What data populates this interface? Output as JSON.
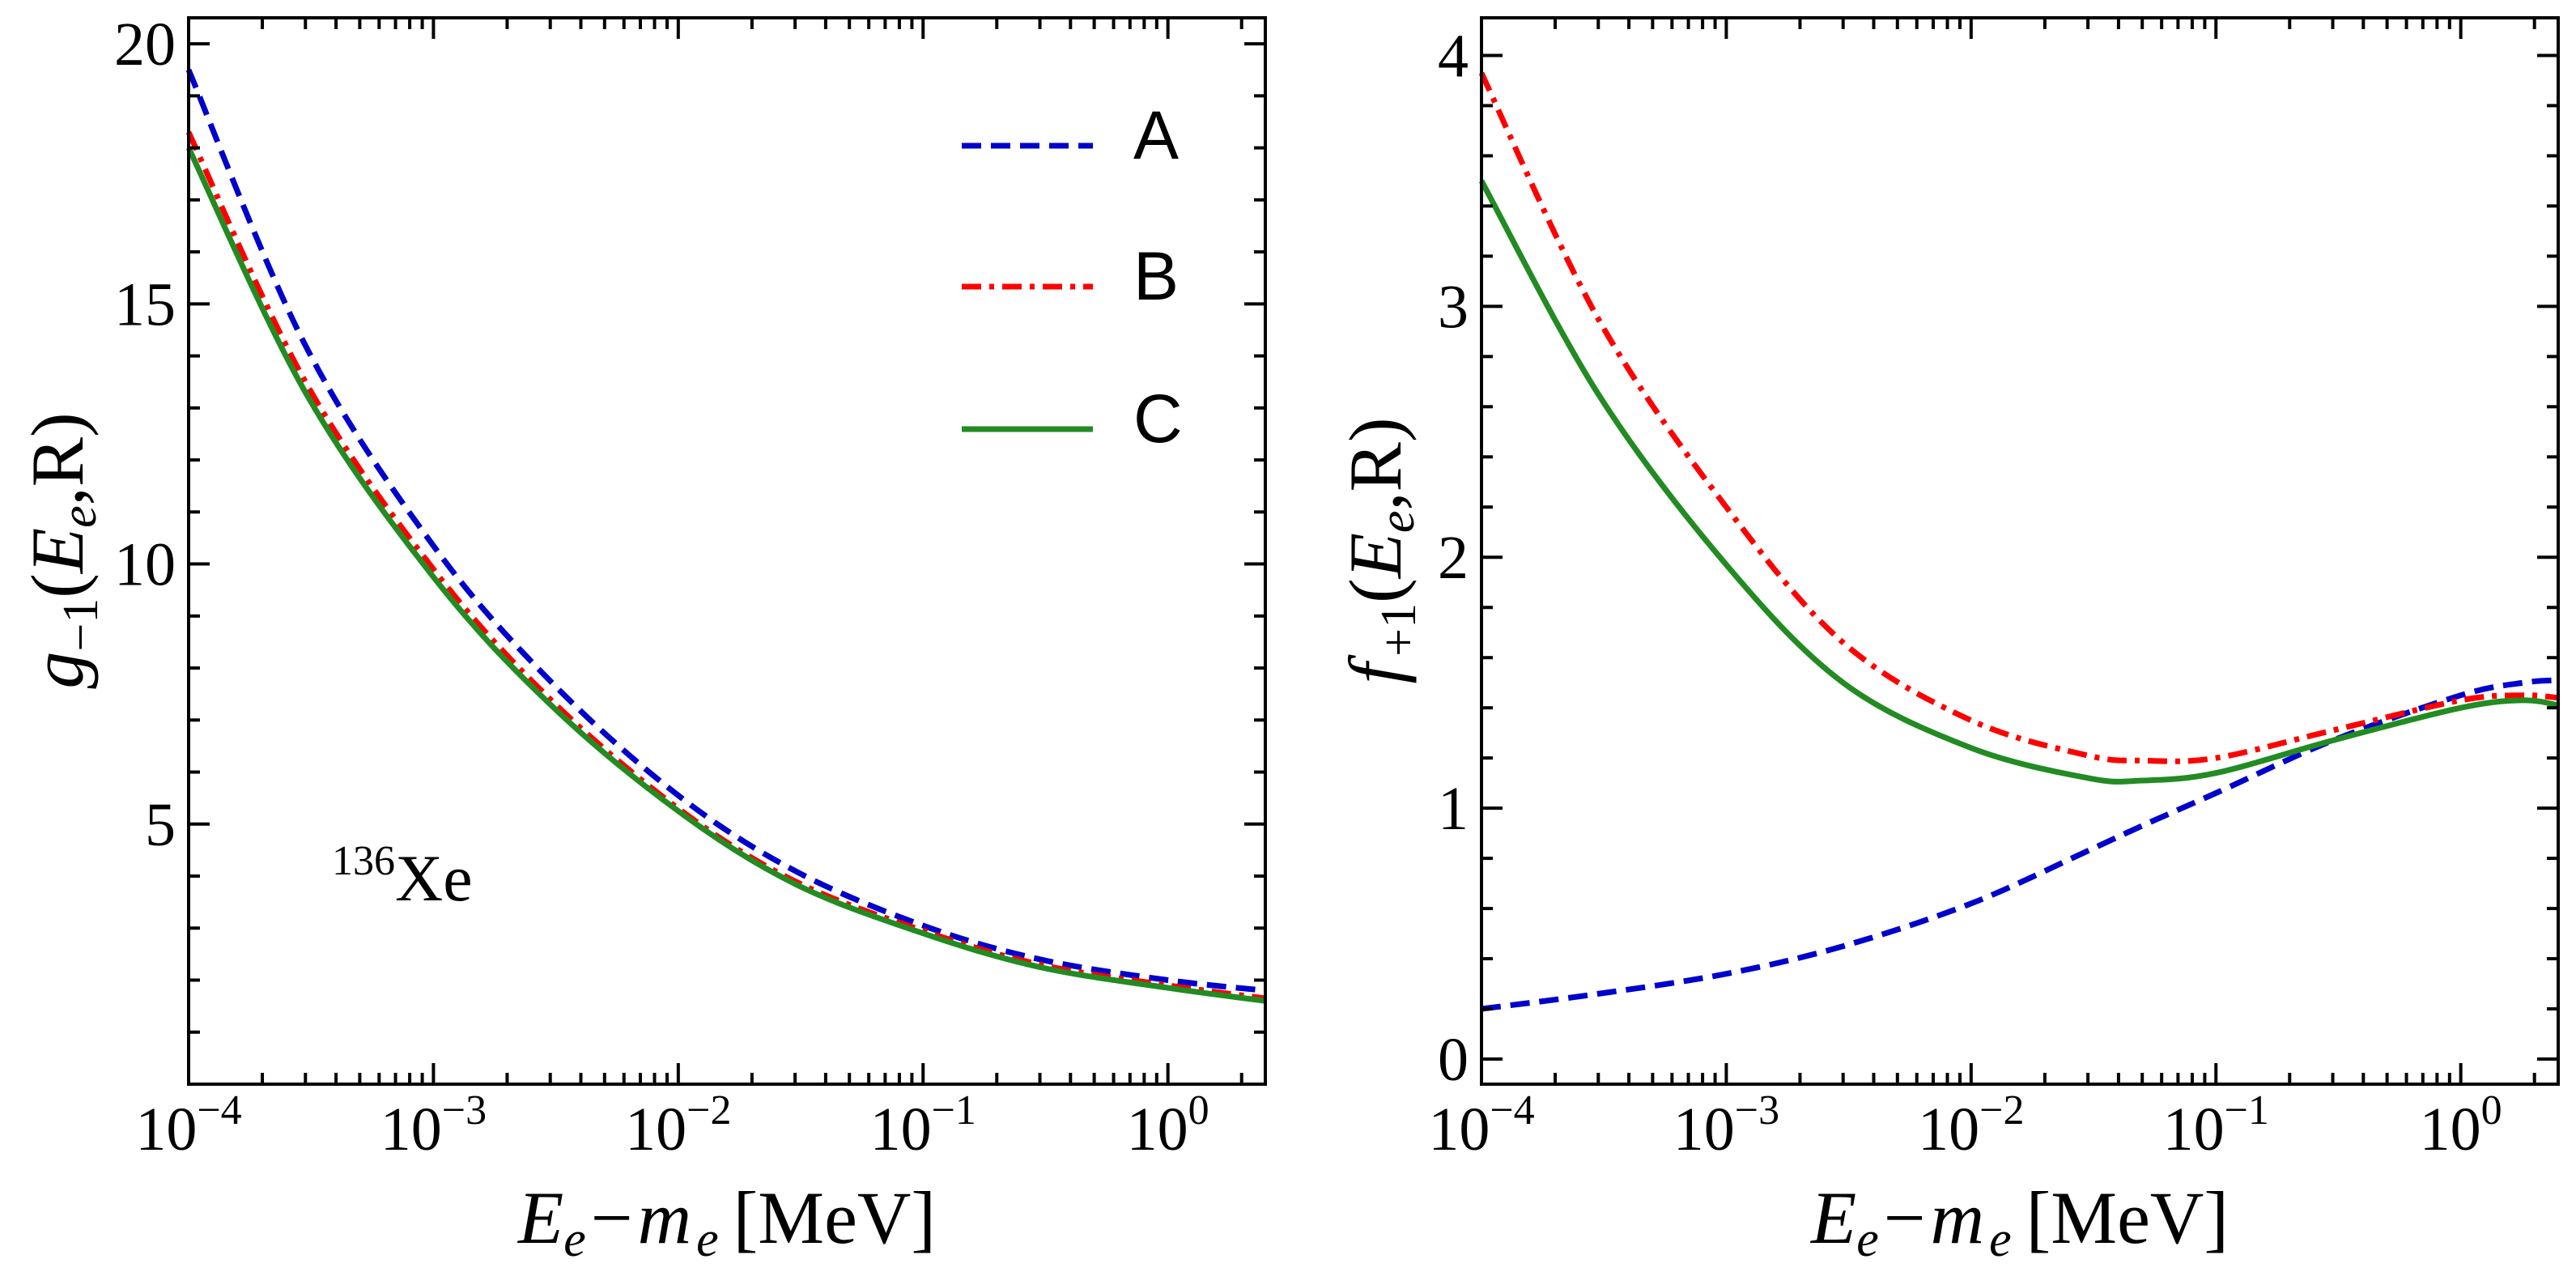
{
  "chart_data": [
    {
      "type": "line",
      "id": "left",
      "x_scale": "log",
      "xlim": [
        0.0001,
        2.5
      ],
      "ylim": [
        0,
        20.5
      ],
      "xlabel": "E_e − m_e [MeV]",
      "xlabel_main": "E",
      "xlabel_sub1": "e",
      "xlabel_minus": "−",
      "xlabel_m": "m",
      "xlabel_sub2": "e",
      "xlabel_unit": "[MeV]",
      "ylabel": "g_{-1}(E_e,R)",
      "ylabel_main": "g",
      "ylabel_sub": "−1",
      "ylabel_arg_open": "(",
      "ylabel_arg_E": "E",
      "ylabel_arg_sub": "e",
      "ylabel_arg_close": ",R)",
      "y_ticks": [
        5,
        10,
        15,
        20
      ],
      "y_tick_labels": [
        "5",
        "10",
        "15",
        "20"
      ],
      "x_ticks": [
        0.0001,
        0.001,
        0.01,
        0.1,
        1
      ],
      "x_tick_bases": [
        "10",
        "10",
        "10",
        "10",
        "10"
      ],
      "x_tick_exps": [
        "−4",
        "−3",
        "−2",
        "−1",
        "0"
      ],
      "annotation_sup": "136",
      "annotation_text": "Xe",
      "x": [
        0.0001,
        0.0003,
        0.001,
        0.003,
        0.01,
        0.03,
        0.1,
        0.3,
        1,
        2.5
      ],
      "series": [
        {
          "name": "A",
          "style": "dashed",
          "color": "#0000cc",
          "values": [
            19.5,
            14.2,
            10.35,
            7.75,
            5.55,
            4.1,
            3.05,
            2.4,
            2.0,
            1.8
          ]
        },
        {
          "name": "B",
          "style": "dashdot",
          "color": "#ff0000",
          "values": [
            18.3,
            13.5,
            9.9,
            7.4,
            5.3,
            3.9,
            2.95,
            2.3,
            1.9,
            1.65
          ]
        },
        {
          "name": "C",
          "style": "solid",
          "color": "#228b22",
          "values": [
            18.0,
            13.3,
            9.75,
            7.3,
            5.25,
            3.85,
            2.9,
            2.25,
            1.85,
            1.6
          ]
        }
      ]
    },
    {
      "type": "line",
      "id": "right",
      "x_scale": "log",
      "xlim": [
        0.0001,
        2.5
      ],
      "ylim": [
        -0.1,
        4.15
      ],
      "xlabel": "E_e − m_e [MeV]",
      "xlabel_main": "E",
      "xlabel_sub1": "e",
      "xlabel_minus": "−",
      "xlabel_m": "m",
      "xlabel_sub2": "e",
      "xlabel_unit": "[MeV]",
      "ylabel": "f_{+1}(E_e,R)",
      "ylabel_main": "f",
      "ylabel_sub": "+1",
      "ylabel_arg_open": "(",
      "ylabel_arg_E": "E",
      "ylabel_arg_sub": "e",
      "ylabel_arg_close": ",R)",
      "y_ticks": [
        0,
        1,
        2,
        3,
        4
      ],
      "y_tick_labels": [
        "0",
        "1",
        "2",
        "3",
        "4"
      ],
      "x_ticks": [
        0.0001,
        0.001,
        0.01,
        0.1,
        1
      ],
      "x_tick_bases": [
        "10",
        "10",
        "10",
        "10",
        "10"
      ],
      "x_tick_exps": [
        "−4",
        "−3",
        "−2",
        "−1",
        "0"
      ],
      "x": [
        0.0001,
        0.0003,
        0.001,
        0.003,
        0.01,
        0.03,
        0.05,
        0.1,
        0.3,
        1,
        1.8,
        2.5
      ],
      "series": [
        {
          "name": "A",
          "style": "dashed",
          "color": "#0000cc",
          "values": [
            0.2,
            0.26,
            0.34,
            0.45,
            0.62,
            0.83,
            0.93,
            1.06,
            1.27,
            1.45,
            1.5,
            1.51
          ]
        },
        {
          "name": "B",
          "style": "dashdot",
          "color": "#ff0000",
          "values": [
            3.93,
            2.95,
            2.2,
            1.66,
            1.35,
            1.21,
            1.19,
            1.2,
            1.31,
            1.43,
            1.45,
            1.44
          ]
        },
        {
          "name": "C",
          "style": "solid",
          "color": "#228b22",
          "values": [
            3.5,
            2.65,
            1.97,
            1.5,
            1.24,
            1.12,
            1.11,
            1.14,
            1.27,
            1.4,
            1.43,
            1.41
          ]
        }
      ]
    }
  ],
  "legend": {
    "placement": "top-right of left panel",
    "entries": [
      {
        "label": "A",
        "style": "dashed",
        "color": "#0000cc"
      },
      {
        "label": "B",
        "style": "dashdot",
        "color": "#ff0000"
      },
      {
        "label": "C",
        "style": "solid",
        "color": "#228b22"
      }
    ]
  }
}
